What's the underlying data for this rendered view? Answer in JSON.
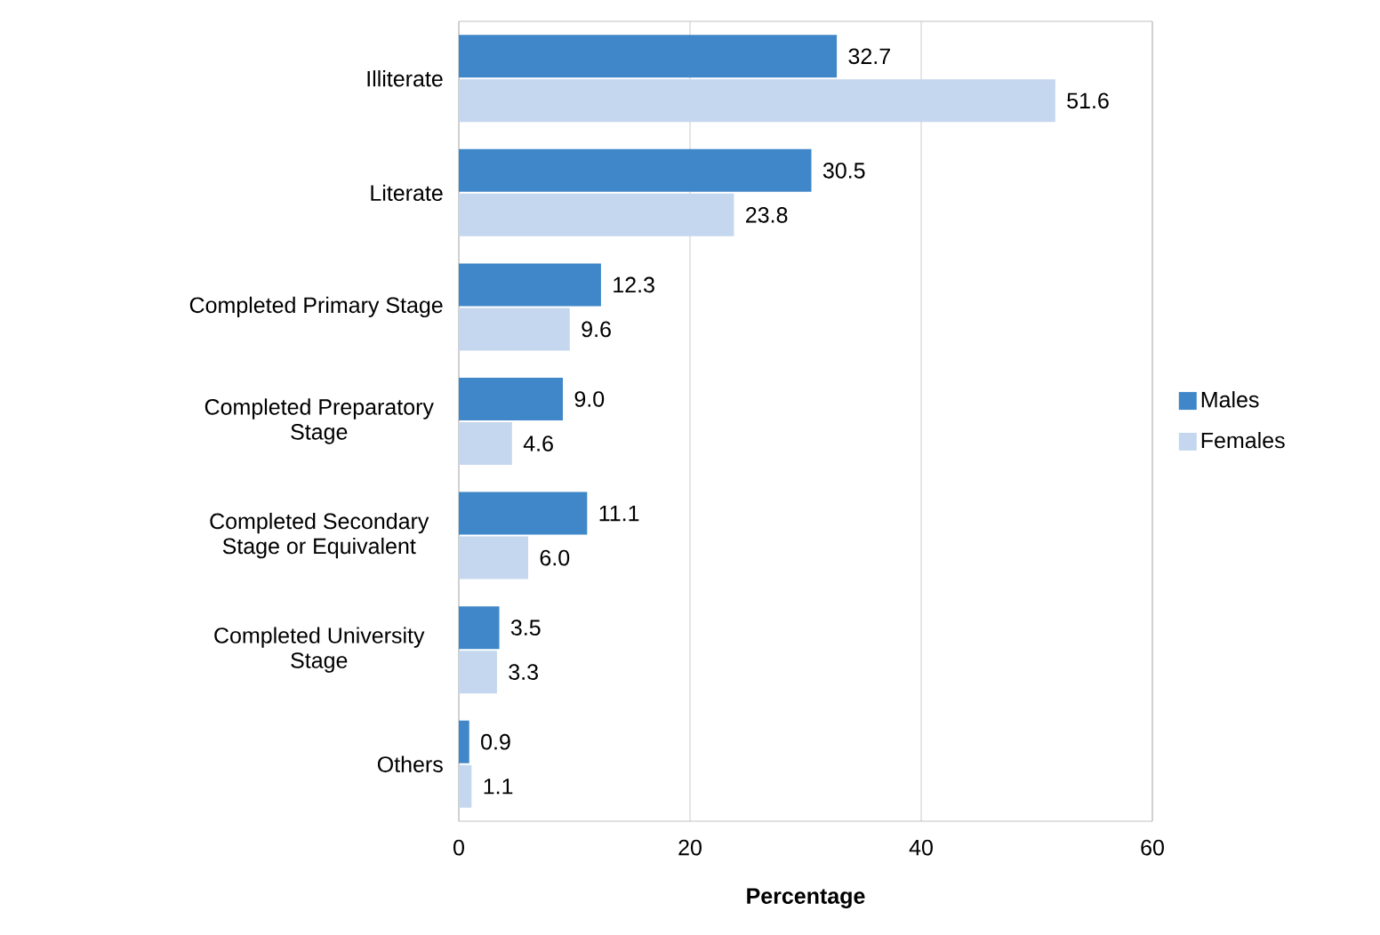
{
  "chart_data": {
    "type": "bar",
    "orientation": "horizontal",
    "xlabel": "Percentage",
    "categories": [
      "Illiterate",
      "Literate",
      "Completed Primary Stage",
      "Completed Preparatory Stage",
      "Completed Secondary Stage or Equivalent",
      "Completed University Stage",
      "Others"
    ],
    "series": [
      {
        "name": "Males",
        "color": "#3f87c8",
        "values": [
          32.7,
          30.5,
          12.3,
          9.0,
          11.1,
          3.5,
          0.9
        ],
        "value_labels": [
          "32.7",
          "30.5",
          "12.3",
          "9.0",
          "11.1",
          "3.5",
          "0.9"
        ]
      },
      {
        "name": "Females",
        "color": "#c5d7ee",
        "values": [
          51.6,
          23.8,
          9.6,
          4.6,
          6.0,
          3.3,
          1.1
        ],
        "value_labels": [
          "51.6",
          "23.8",
          "9.6",
          "4.6",
          "6.0",
          "3.3",
          "1.1"
        ]
      }
    ],
    "xlim": [
      0,
      60
    ],
    "xticks": [
      0,
      20,
      40,
      60
    ],
    "grid": "x",
    "legend": "right",
    "data_labels": true
  }
}
